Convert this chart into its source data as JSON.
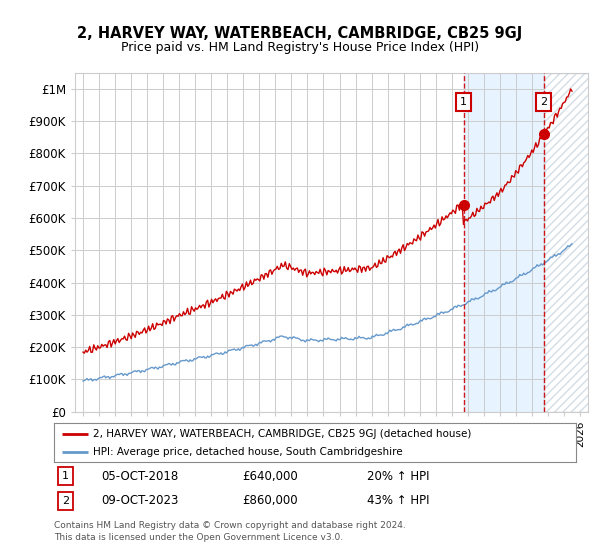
{
  "title": "2, HARVEY WAY, WATERBEACH, CAMBRIDGE, CB25 9GJ",
  "subtitle": "Price paid vs. HM Land Registry's House Price Index (HPI)",
  "legend_line1": "2, HARVEY WAY, WATERBEACH, CAMBRIDGE, CB25 9GJ (detached house)",
  "legend_line2": "HPI: Average price, detached house, South Cambridgeshire",
  "annotation1_label": "1",
  "annotation1_date": "05-OCT-2018",
  "annotation1_price": "£640,000",
  "annotation1_hpi": "20% ↑ HPI",
  "annotation2_label": "2",
  "annotation2_date": "09-OCT-2023",
  "annotation2_price": "£860,000",
  "annotation2_hpi": "43% ↑ HPI",
  "footer": "Contains HM Land Registry data © Crown copyright and database right 2024.\nThis data is licensed under the Open Government Licence v3.0.",
  "red_color": "#cc0000",
  "blue_color": "#6699cc",
  "background_color": "#ffffff",
  "grid_color": "#cccccc",
  "ylim": [
    0,
    1050000
  ],
  "yticks": [
    0,
    100000,
    200000,
    300000,
    400000,
    500000,
    600000,
    700000,
    800000,
    900000,
    1000000
  ],
  "ytick_labels": [
    "£0",
    "£100K",
    "£200K",
    "£300K",
    "£400K",
    "£500K",
    "£600K",
    "£700K",
    "£800K",
    "£900K",
    "£1M"
  ],
  "sale1_x": 2018.75,
  "sale1_y": 640000,
  "sale2_x": 2023.75,
  "sale2_y": 860000,
  "xmin": 1994.5,
  "xmax": 2026.5
}
